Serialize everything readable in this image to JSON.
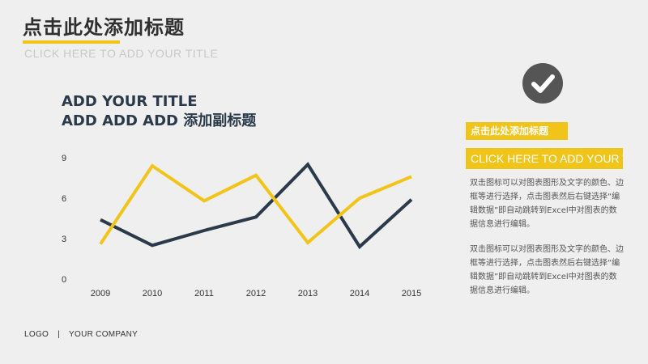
{
  "colors": {
    "accent": "#f0c419",
    "dark": "#2b3a4a"
  },
  "header": {
    "title": "点击此处添加标题",
    "subtitle": "CLICK HERE TO ADD YOUR TITLE"
  },
  "chart_heading": {
    "line1": "ADD YOUR TITLE",
    "line2": "ADD ADD ADD 添加副标题"
  },
  "chart_data": {
    "type": "line",
    "categories": [
      "2009",
      "2010",
      "2011",
      "2012",
      "2013",
      "2014",
      "2015"
    ],
    "series": [
      {
        "color": "#2b3a4a",
        "values": [
          4.4,
          2.5,
          3.6,
          4.6,
          8.5,
          2.4,
          5.9
        ]
      },
      {
        "color": "#f0c419",
        "values": [
          2.6,
          8.4,
          5.8,
          7.7,
          2.7,
          6.0,
          7.6
        ]
      }
    ],
    "ylim": [
      0,
      9
    ],
    "yticks": [
      "0",
      "3",
      "6",
      "9"
    ],
    "grid": false,
    "legend": "none"
  },
  "right_panel": {
    "icon": "check-icon",
    "tag": "点击此处添加标题",
    "tag_en": "CLICK HERE TO ADD YOUR TITLE",
    "paragraph1": "双击图标可以对图表图形及文字的颜色、边框等进行选择，点击图表然后右键选择“编辑数据”即自动跳转到Excel中对图表的数据信息进行编辑。",
    "paragraph2": "双击图标可以对图表图形及文字的颜色、边框等进行选择，点击图表然后右键选择“编辑数据”即自动跳转到Excel中对图表的数据信息进行编辑。"
  },
  "footer": {
    "logo": "LOGO",
    "separator": "|",
    "company": "YOUR COMPANY"
  }
}
